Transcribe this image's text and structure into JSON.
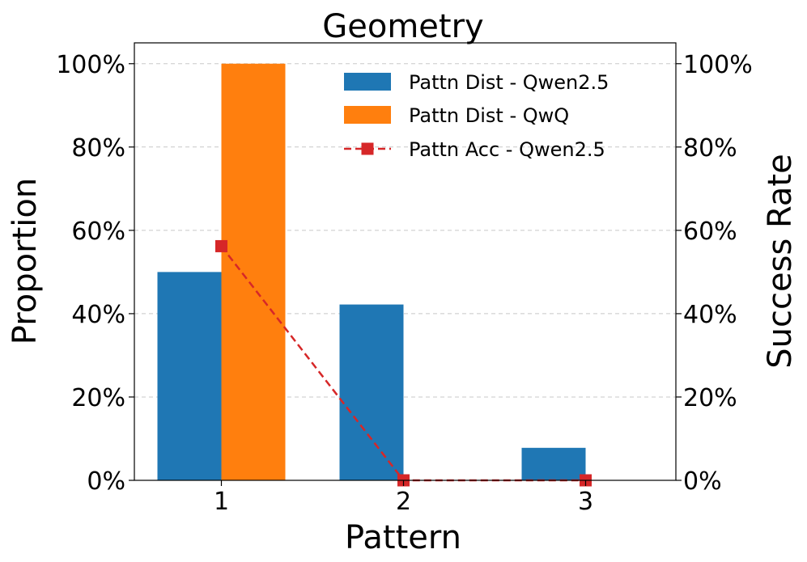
{
  "chart_data": {
    "type": "bar",
    "title": "Geometry",
    "xlabel": "Pattern",
    "ylabel": "Proportion",
    "y2label": "Success Rate",
    "categories": [
      "1",
      "2",
      "3"
    ],
    "ylim": [
      0,
      105
    ],
    "y2lim": [
      0,
      105
    ],
    "y_ticks": [
      "0%",
      "20%",
      "40%",
      "60%",
      "80%",
      "100%"
    ],
    "y2_ticks": [
      "0%",
      "20%",
      "40%",
      "60%",
      "80%",
      "100%"
    ],
    "grid": "horizontal dashed",
    "legend_position": "upper right",
    "series": [
      {
        "name": "Pattn Dist - Qwen2.5",
        "kind": "bar",
        "color": "#1f77b4",
        "values": [
          50,
          42.2,
          7.8
        ]
      },
      {
        "name": "Pattn Dist - QwQ",
        "kind": "bar",
        "color": "#ff7f0e",
        "values": [
          100,
          0,
          0
        ]
      },
      {
        "name": "Pattn Acc - Qwen2.5",
        "kind": "line",
        "axis": "right",
        "style": "dashed",
        "marker": "square",
        "color": "#d62728",
        "values": [
          56.2,
          0,
          0
        ]
      }
    ]
  }
}
